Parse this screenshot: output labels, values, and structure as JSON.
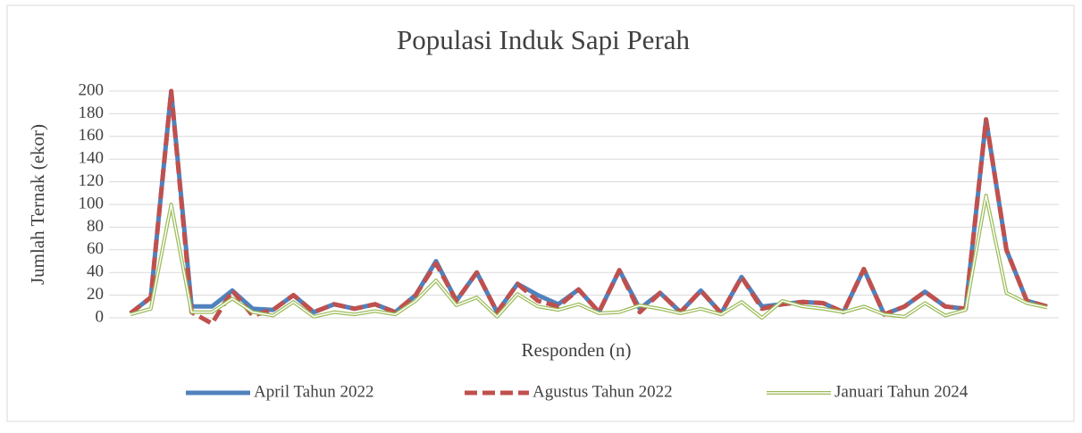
{
  "chart_data": {
    "type": "line",
    "title": "Populasi Induk Sapi Perah",
    "x_label": "Responden (n)",
    "y_label": "Jumlah Ternak (ekor)",
    "categories": [
      null,
      null,
      null,
      null,
      null,
      null,
      null,
      null,
      null,
      null,
      null,
      null,
      null,
      null,
      null,
      null,
      null,
      null,
      null,
      null,
      null,
      null,
      null,
      null,
      null,
      null,
      null,
      null,
      null,
      null,
      null,
      null,
      null,
      null,
      null,
      null,
      null,
      null,
      null,
      null,
      null,
      null,
      null,
      null,
      null,
      null
    ],
    "ylim": [
      0,
      200
    ],
    "yticks": [
      0,
      20,
      40,
      60,
      80,
      100,
      120,
      140,
      160,
      180,
      200
    ],
    "grid": true,
    "legend": "bottom",
    "series": [
      {
        "name": "April Tahun 2022",
        "color": "#4f81bd",
        "style": "solid",
        "values": [
          4,
          18,
          200,
          10,
          10,
          24,
          8,
          7,
          20,
          5,
          12,
          8,
          12,
          5,
          20,
          50,
          15,
          40,
          5,
          30,
          20,
          12,
          25,
          5,
          42,
          8,
          22,
          5,
          24,
          4,
          36,
          10,
          12,
          14,
          13,
          5,
          43,
          3,
          10,
          23,
          10,
          8,
          175,
          60,
          15,
          10
        ]
      },
      {
        "name": "Agustus Tahun 2022",
        "color": "#c0504d",
        "style": "dashed",
        "values": [
          4,
          18,
          200,
          5,
          -5,
          24,
          2,
          7,
          20,
          5,
          12,
          8,
          12,
          5,
          20,
          48,
          15,
          40,
          5,
          30,
          15,
          10,
          25,
          5,
          42,
          5,
          22,
          5,
          24,
          4,
          36,
          8,
          12,
          14,
          13,
          5,
          43,
          3,
          10,
          23,
          10,
          8,
          175,
          60,
          15,
          10
        ]
      },
      {
        "name": "Januari Tahun 2024",
        "color": "#9bbb59",
        "style": "double",
        "values": [
          3,
          8,
          100,
          5,
          5,
          17,
          5,
          2,
          14,
          1,
          5,
          3,
          6,
          3,
          15,
          33,
          11,
          18,
          1,
          21,
          10,
          7,
          12,
          4,
          5,
          11,
          8,
          4,
          8,
          3,
          14,
          0,
          15,
          10,
          8,
          5,
          10,
          3,
          1,
          13,
          2,
          7,
          108,
          22,
          13,
          9
        ]
      }
    ]
  }
}
